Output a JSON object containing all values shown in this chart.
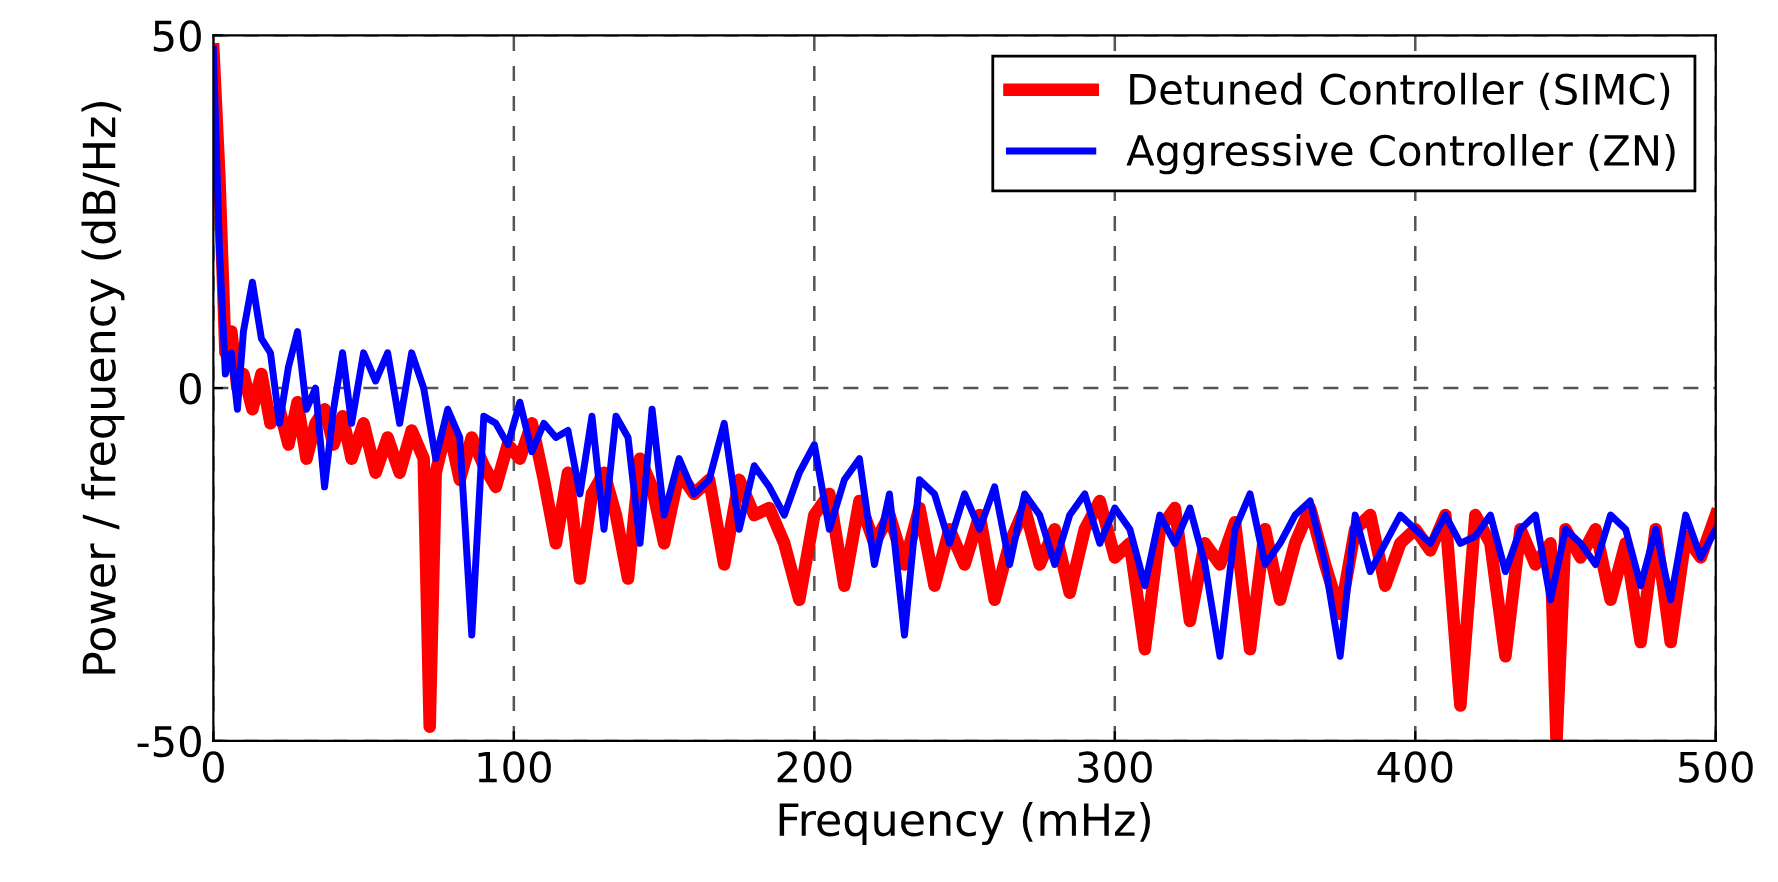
{
  "chart_data": {
    "type": "line",
    "xlabel": "Frequency (mHz)",
    "ylabel": "Power / frequency (dB/Hz)",
    "xlim": [
      0,
      500
    ],
    "ylim": [
      -50,
      50
    ],
    "xticks": [
      0,
      100,
      200,
      300,
      400,
      500
    ],
    "yticks": [
      -50,
      0,
      50
    ],
    "grid": true,
    "legend": "top right",
    "line_style": "solid",
    "marker": "none",
    "series": [
      {
        "name": "Detuned Controller (SIMC)",
        "color": "#ff0000",
        "x": [
          0,
          2,
          4,
          6,
          8,
          10,
          13,
          16,
          19,
          22,
          25,
          28,
          31,
          34,
          37,
          40,
          43,
          46,
          50,
          54,
          58,
          62,
          66,
          70,
          72,
          74,
          78,
          82,
          86,
          90,
          94,
          98,
          102,
          106,
          110,
          114,
          118,
          122,
          126,
          130,
          134,
          138,
          142,
          146,
          150,
          155,
          160,
          165,
          170,
          175,
          180,
          185,
          190,
          195,
          200,
          205,
          210,
          215,
          220,
          225,
          230,
          235,
          240,
          245,
          250,
          255,
          260,
          265,
          270,
          275,
          280,
          285,
          290,
          295,
          300,
          305,
          310,
          315,
          320,
          325,
          330,
          335,
          340,
          345,
          350,
          355,
          360,
          365,
          370,
          375,
          380,
          385,
          390,
          395,
          400,
          405,
          410,
          415,
          420,
          425,
          430,
          435,
          440,
          445,
          447,
          450,
          455,
          460,
          465,
          470,
          475,
          480,
          485,
          490,
          495,
          500
        ],
        "values": [
          48,
          30,
          5,
          8,
          0,
          2,
          -3,
          2,
          -5,
          -3,
          -8,
          -2,
          -10,
          -5,
          -3,
          -8,
          -4,
          -10,
          -5,
          -12,
          -7,
          -12,
          -6,
          -10,
          -48,
          -12,
          -5,
          -13,
          -7,
          -11,
          -14,
          -8,
          -10,
          -5,
          -13,
          -22,
          -12,
          -27,
          -15,
          -12,
          -18,
          -27,
          -10,
          -14,
          -22,
          -12,
          -15,
          -13,
          -25,
          -13,
          -18,
          -17,
          -22,
          -30,
          -18,
          -15,
          -28,
          -16,
          -22,
          -18,
          -25,
          -17,
          -28,
          -20,
          -25,
          -18,
          -30,
          -22,
          -17,
          -25,
          -20,
          -29,
          -20,
          -16,
          -24,
          -22,
          -37,
          -20,
          -17,
          -33,
          -22,
          -25,
          -19,
          -37,
          -20,
          -30,
          -22,
          -17,
          -25,
          -32,
          -20,
          -18,
          -28,
          -22,
          -20,
          -23,
          -18,
          -45,
          -18,
          -22,
          -38,
          -20,
          -25,
          -22,
          -50,
          -20,
          -24,
          -20,
          -30,
          -22,
          -36,
          -20,
          -36,
          -21,
          -24,
          -18
        ]
      },
      {
        "name": "Aggressive Controller (ZN)",
        "color": "#0000ff",
        "x": [
          0,
          2,
          4,
          6,
          8,
          10,
          13,
          16,
          19,
          22,
          25,
          28,
          31,
          34,
          37,
          40,
          43,
          46,
          50,
          54,
          58,
          62,
          66,
          70,
          74,
          78,
          82,
          86,
          90,
          94,
          98,
          102,
          106,
          110,
          114,
          118,
          122,
          126,
          130,
          134,
          138,
          142,
          146,
          150,
          155,
          160,
          165,
          170,
          175,
          180,
          185,
          190,
          195,
          200,
          205,
          210,
          215,
          220,
          225,
          230,
          235,
          240,
          245,
          250,
          255,
          260,
          265,
          270,
          275,
          280,
          285,
          290,
          295,
          300,
          305,
          310,
          315,
          320,
          325,
          330,
          335,
          340,
          345,
          350,
          355,
          360,
          365,
          370,
          375,
          380,
          385,
          390,
          395,
          400,
          405,
          410,
          415,
          420,
          425,
          430,
          435,
          440,
          445,
          450,
          455,
          460,
          465,
          470,
          475,
          480,
          485,
          490,
          495,
          500
        ],
        "values": [
          48,
          20,
          2,
          5,
          -3,
          8,
          15,
          7,
          5,
          -5,
          3,
          8,
          -3,
          0,
          -14,
          -3,
          5,
          -5,
          5,
          1,
          5,
          -5,
          5,
          0,
          -10,
          -3,
          -7,
          -35,
          -4,
          -5,
          -8,
          -2,
          -9,
          -5,
          -7,
          -6,
          -15,
          -4,
          -20,
          -4,
          -7,
          -22,
          -3,
          -18,
          -10,
          -15,
          -13,
          -5,
          -20,
          -11,
          -14,
          -18,
          -12,
          -8,
          -20,
          -13,
          -10,
          -25,
          -15,
          -35,
          -13,
          -15,
          -22,
          -15,
          -20,
          -14,
          -25,
          -15,
          -18,
          -25,
          -18,
          -15,
          -22,
          -17,
          -20,
          -28,
          -18,
          -22,
          -17,
          -25,
          -38,
          -20,
          -15,
          -25,
          -22,
          -18,
          -16,
          -25,
          -38,
          -18,
          -26,
          -22,
          -18,
          -20,
          -22,
          -18,
          -22,
          -21,
          -18,
          -26,
          -20,
          -18,
          -30,
          -20,
          -22,
          -25,
          -18,
          -20,
          -28,
          -20,
          -30,
          -18,
          -24,
          -20
        ]
      }
    ]
  }
}
